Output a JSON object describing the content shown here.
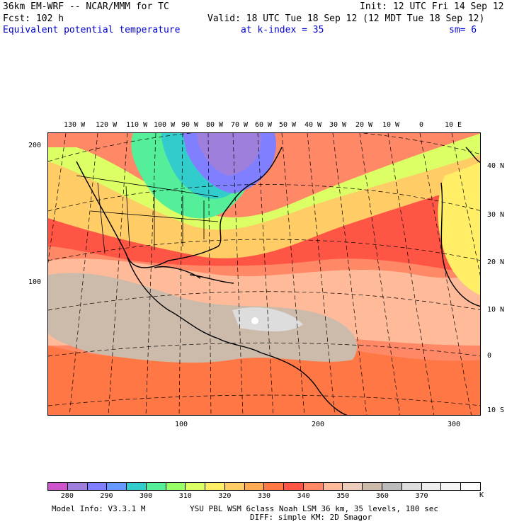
{
  "header": {
    "model": "36km EM-WRF -- NCAR/MMM for TC",
    "init": "Init: 12 UTC Fri 14 Sep 12",
    "fcst": "Fcst:  102 h",
    "valid": "Valid: 18 UTC Tue 18 Sep 12 (12 MDT Tue 18 Sep 12)",
    "field": "Equivalent potential temperature",
    "level": "at k-index =  35",
    "smooth": "sm= 6"
  },
  "map": {
    "top_lon_labels": [
      "130 W",
      "120 W",
      "110 W",
      "100 W",
      "90 W",
      "80 W",
      "70 W",
      "60 W",
      "50 W",
      "40 W",
      "30 W",
      "20 W",
      "10 W",
      "0",
      "10 E"
    ],
    "right_lat_labels": [
      "40 N",
      "30 N",
      "20 N",
      "10 N",
      "0",
      "10 S"
    ],
    "left_grid_labels": [
      "200",
      "100"
    ],
    "bottom_grid_labels": [
      "100",
      "200",
      "300"
    ]
  },
  "legend": {
    "unit": "K",
    "labels": [
      "280",
      "290",
      "300",
      "310",
      "320",
      "330",
      "340",
      "350",
      "360",
      "370"
    ],
    "colors": [
      "#cc55cc",
      "#9f7fdc",
      "#7f7fff",
      "#6699ff",
      "#33cccc",
      "#55ee99",
      "#99ff66",
      "#ddff66",
      "#ffee66",
      "#ffcc66",
      "#ffaa55",
      "#ff7744",
      "#ff5544",
      "#ff8866",
      "#ffbb99",
      "#eeccbb",
      "#ccbbaa",
      "#bbbbbb",
      "#dddddd",
      "#eeeeee",
      "#f4f4f4",
      "#ffffff"
    ]
  },
  "footer": {
    "line1_left": "Model Info: V3.3.1 M",
    "line1_right": "YSU PBL  WSM 6class  Noah LSM  36 km,   35 levels,  180 sec",
    "line2": "DIFF: simple KM: 2D Smagor"
  }
}
